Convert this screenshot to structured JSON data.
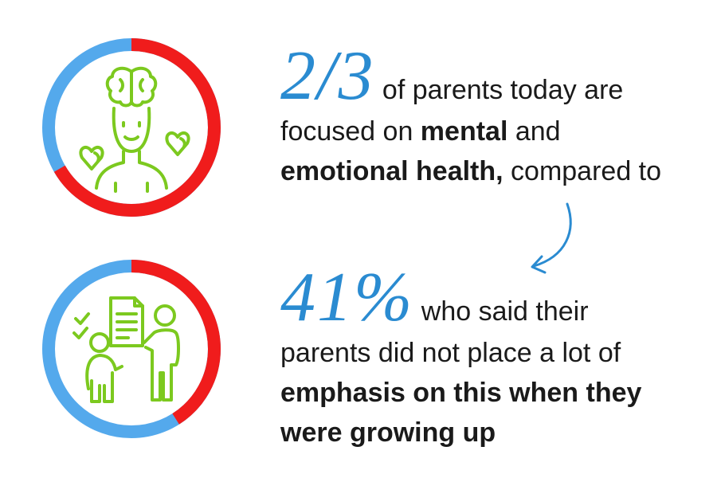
{
  "colors": {
    "ring_blue": "#54a9ec",
    "ring_red": "#f01c1c",
    "icon_green": "#7cc91f",
    "accent_blue": "#2a8bd1",
    "text": "#1a1a1a"
  },
  "stats": [
    {
      "big_number": "2/3",
      "value_fraction": 0.667,
      "icon": "person-brain-hearts-icon",
      "lines": [
        {
          "parts": [
            {
              "text": "of parents today are",
              "bold": false
            }
          ]
        },
        {
          "parts": [
            {
              "text": "focused on ",
              "bold": false
            },
            {
              "text": "mental",
              "bold": true
            },
            {
              "text": " and",
              "bold": false
            }
          ]
        },
        {
          "parts": [
            {
              "text": "emotional health,",
              "bold": true
            },
            {
              "text": " compared to",
              "bold": false
            }
          ]
        }
      ]
    },
    {
      "big_number": "41%",
      "value_fraction": 0.41,
      "icon": "parent-child-checklist-icon",
      "lines": [
        {
          "parts": [
            {
              "text": "who said their",
              "bold": false
            }
          ]
        },
        {
          "parts": [
            {
              "text": "parents did not place a lot of",
              "bold": false
            }
          ]
        },
        {
          "parts": [
            {
              "text": "emphasis on this when they",
              "bold": true
            }
          ]
        },
        {
          "parts": [
            {
              "text": "were growing up",
              "bold": true
            }
          ]
        }
      ]
    }
  ]
}
